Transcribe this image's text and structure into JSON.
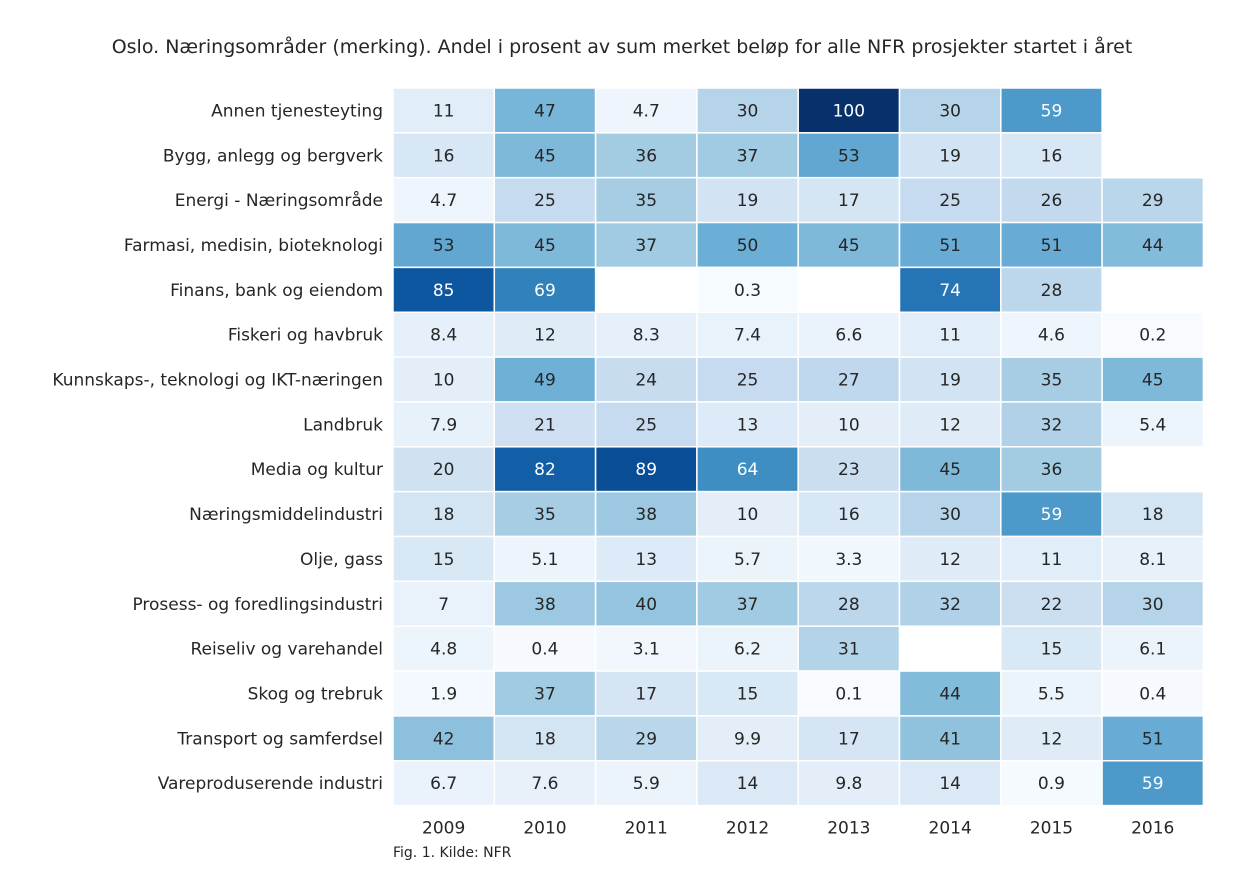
{
  "chart_data": {
    "type": "heatmap",
    "title": "Oslo. Næringsområder (merking). Andel i prosent av sum merket beløp for alle NFR prosjekter startet i året",
    "xlabel": "",
    "ylabel": "",
    "colormap": "Blues",
    "value_range": [
      0,
      100
    ],
    "grid_line_color": "#ffffff",
    "columns": [
      "2009",
      "2010",
      "2011",
      "2012",
      "2013",
      "2014",
      "2015",
      "2016"
    ],
    "rows": [
      "Annen tjenesteyting",
      "Bygg, anlegg og bergverk",
      "Energi - Næringsområde",
      "Farmasi, medisin, bioteknologi",
      "Finans, bank og eiendom",
      "Fiskeri og havbruk",
      "Kunnskaps-, teknologi og IKT-næringen",
      "Landbruk",
      "Media og kultur",
      "Næringsmiddelindustri",
      "Olje, gass",
      "Prosess- og foredlingsindustri",
      "Reiseliv og varehandel",
      "Skog og trebruk",
      "Transport og samferdsel",
      "Vareproduserende industri"
    ],
    "values": [
      [
        11,
        47,
        4.7,
        30,
        100,
        30,
        59,
        null
      ],
      [
        16,
        45,
        36,
        37,
        53,
        19,
        16,
        null
      ],
      [
        4.7,
        25,
        35,
        19,
        17,
        25,
        26,
        29
      ],
      [
        53,
        45,
        37,
        50,
        45,
        51,
        51,
        44
      ],
      [
        85,
        69,
        null,
        0.3,
        null,
        74,
        28,
        null
      ],
      [
        8.4,
        12,
        8.3,
        7.4,
        6.6,
        11,
        4.6,
        0.2
      ],
      [
        10,
        49,
        24,
        25,
        27,
        19,
        35,
        45
      ],
      [
        7.9,
        21,
        25,
        13,
        10,
        12,
        32,
        5.4
      ],
      [
        20,
        82,
        89,
        64,
        23,
        45,
        36,
        null
      ],
      [
        18,
        35,
        38,
        10,
        16,
        30,
        59,
        18
      ],
      [
        15,
        5.1,
        13,
        5.7,
        3.3,
        12,
        11,
        8.1
      ],
      [
        7,
        38,
        40,
        37,
        28,
        32,
        22,
        30
      ],
      [
        4.8,
        0.4,
        3.1,
        6.2,
        31,
        null,
        15,
        6.1
      ],
      [
        1.9,
        37,
        17,
        15,
        0.1,
        44,
        5.5,
        0.4
      ],
      [
        42,
        18,
        29,
        9.9,
        17,
        41,
        12,
        51
      ],
      [
        6.7,
        7.6,
        5.9,
        14,
        9.8,
        14,
        0.9,
        59
      ]
    ]
  },
  "caption": "Fig. 1. Kilde: NFR"
}
